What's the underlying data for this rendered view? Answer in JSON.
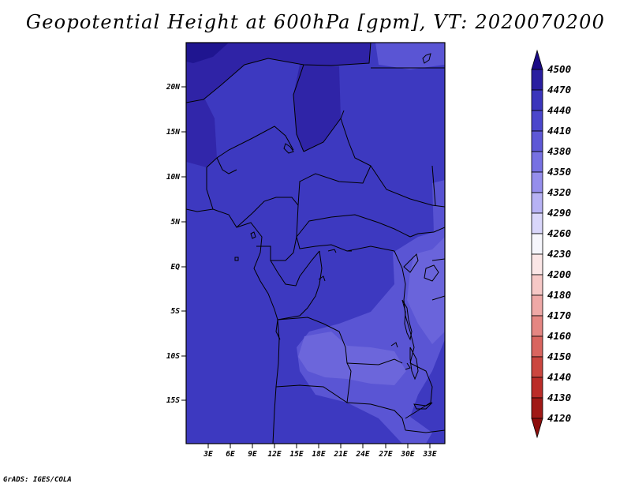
{
  "title": "Geopotential Height at 600hPa [gpm], VT: 2020070200",
  "credit": "GrADS: IGES/COLA",
  "map": {
    "lat_labels": [
      "20N",
      "15N",
      "10N",
      "5N",
      "EQ",
      "5S",
      "10S",
      "15S"
    ],
    "lon_labels": [
      "3E",
      "6E",
      "9E",
      "12E",
      "15E",
      "18E",
      "21E",
      "24E",
      "27E",
      "30E",
      "33E"
    ],
    "fill_colors": {
      "level_4470": "#2e22a4",
      "level_4440": "#3d39c0",
      "level_4410": "#5a55d4",
      "level_4380": "#6c66db"
    },
    "border_color": "#000000"
  },
  "colorbar": {
    "labels": [
      "4500",
      "4470",
      "4440",
      "4410",
      "4380",
      "4350",
      "4320",
      "4290",
      "4260",
      "4230",
      "4200",
      "4180",
      "4170",
      "4160",
      "4150",
      "4140",
      "4130",
      "4120"
    ],
    "colors": [
      "#1b0b86",
      "#2a1ea0",
      "#3b35bc",
      "#4b46cc",
      "#5e58d6",
      "#7771e2",
      "#958eec",
      "#b7b2f4",
      "#d9d6fa",
      "#f6f6fc",
      "#fbe6e6",
      "#f6c8c6",
      "#eea8a6",
      "#e48682",
      "#d9655f",
      "#cb463f",
      "#bb2c28",
      "#a01916",
      "#8c0d0c"
    ]
  }
}
